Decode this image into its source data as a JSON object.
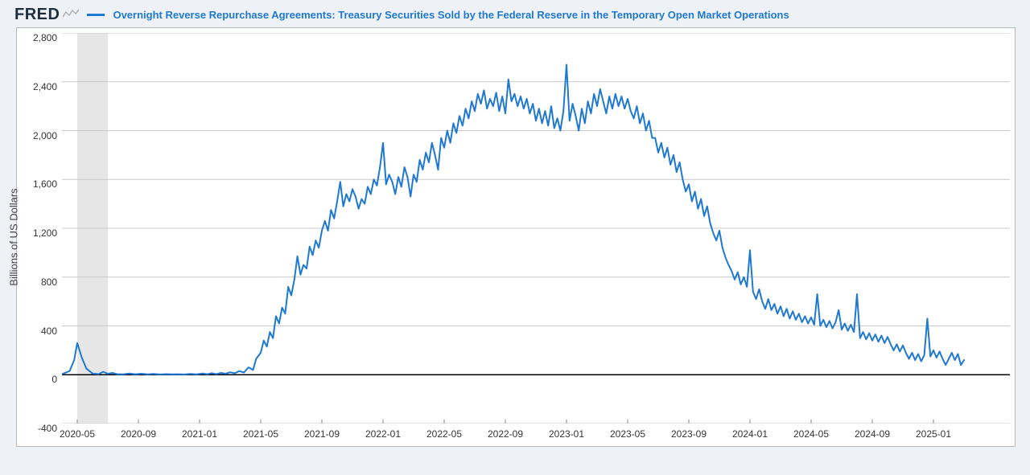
{
  "logo_text": "FRED",
  "series_title": "Overnight Reverse Repurchase Agreements: Treasury Securities Sold by the Federal Reserve in the Temporary Open Market Operations",
  "y_axis_label": "Billions of US Dollars",
  "chart": {
    "type": "line",
    "line_color": "#1f78d1",
    "line_width": 2,
    "background_color": "#ffffff",
    "page_background": "#eef2f7",
    "grid_color": "#c9c9c9",
    "zero_line_color": "#000000",
    "recession_band_color": "#e6e6e6",
    "recession_band": {
      "x_start": 1,
      "x_end": 3
    },
    "ylim": [
      -400,
      2800
    ],
    "ytick_step": 400,
    "yticks": [
      -400,
      0,
      400,
      800,
      1200,
      1600,
      2000,
      2400,
      2800
    ],
    "x_domain": [
      0,
      62
    ],
    "xticks": [
      {
        "pos": 1,
        "label": "2020-05"
      },
      {
        "pos": 5,
        "label": "2020-09"
      },
      {
        "pos": 9,
        "label": "2021-01"
      },
      {
        "pos": 13,
        "label": "2021-05"
      },
      {
        "pos": 17,
        "label": "2021-09"
      },
      {
        "pos": 21,
        "label": "2022-01"
      },
      {
        "pos": 25,
        "label": "2022-05"
      },
      {
        "pos": 29,
        "label": "2022-09"
      },
      {
        "pos": 33,
        "label": "2023-01"
      },
      {
        "pos": 37,
        "label": "2023-05"
      },
      {
        "pos": 41,
        "label": "2023-09"
      },
      {
        "pos": 45,
        "label": "2024-01"
      },
      {
        "pos": 49,
        "label": "2024-05"
      },
      {
        "pos": 53,
        "label": "2024-09"
      },
      {
        "pos": 57,
        "label": "2025-01"
      }
    ],
    "series": [
      {
        "x": 0.0,
        "y": 5
      },
      {
        "x": 0.5,
        "y": 30
      },
      {
        "x": 0.8,
        "y": 120
      },
      {
        "x": 1.0,
        "y": 260
      },
      {
        "x": 1.3,
        "y": 140
      },
      {
        "x": 1.6,
        "y": 50
      },
      {
        "x": 2.0,
        "y": 10
      },
      {
        "x": 2.4,
        "y": 5
      },
      {
        "x": 2.7,
        "y": 25
      },
      {
        "x": 3.0,
        "y": 8
      },
      {
        "x": 3.3,
        "y": 15
      },
      {
        "x": 3.6,
        "y": 5
      },
      {
        "x": 4.0,
        "y": 3
      },
      {
        "x": 4.4,
        "y": 10
      },
      {
        "x": 4.8,
        "y": 4
      },
      {
        "x": 5.2,
        "y": 8
      },
      {
        "x": 5.6,
        "y": 3
      },
      {
        "x": 6.0,
        "y": 6
      },
      {
        "x": 6.4,
        "y": 2
      },
      {
        "x": 6.8,
        "y": 5
      },
      {
        "x": 7.2,
        "y": 3
      },
      {
        "x": 7.6,
        "y": 4
      },
      {
        "x": 8.0,
        "y": 2
      },
      {
        "x": 8.4,
        "y": 6
      },
      {
        "x": 8.8,
        "y": 3
      },
      {
        "x": 9.2,
        "y": 10
      },
      {
        "x": 9.5,
        "y": 4
      },
      {
        "x": 9.8,
        "y": 12
      },
      {
        "x": 10.1,
        "y": 5
      },
      {
        "x": 10.4,
        "y": 15
      },
      {
        "x": 10.7,
        "y": 8
      },
      {
        "x": 11.0,
        "y": 20
      },
      {
        "x": 11.3,
        "y": 12
      },
      {
        "x": 11.6,
        "y": 30
      },
      {
        "x": 11.9,
        "y": 18
      },
      {
        "x": 12.2,
        "y": 60
      },
      {
        "x": 12.5,
        "y": 40
      },
      {
        "x": 12.7,
        "y": 130
      },
      {
        "x": 13.0,
        "y": 180
      },
      {
        "x": 13.2,
        "y": 280
      },
      {
        "x": 13.4,
        "y": 230
      },
      {
        "x": 13.6,
        "y": 350
      },
      {
        "x": 13.8,
        "y": 300
      },
      {
        "x": 14.0,
        "y": 480
      },
      {
        "x": 14.2,
        "y": 420
      },
      {
        "x": 14.4,
        "y": 550
      },
      {
        "x": 14.6,
        "y": 500
      },
      {
        "x": 14.8,
        "y": 720
      },
      {
        "x": 15.0,
        "y": 650
      },
      {
        "x": 15.2,
        "y": 780
      },
      {
        "x": 15.4,
        "y": 970
      },
      {
        "x": 15.6,
        "y": 820
      },
      {
        "x": 15.8,
        "y": 900
      },
      {
        "x": 16.0,
        "y": 870
      },
      {
        "x": 16.2,
        "y": 1050
      },
      {
        "x": 16.4,
        "y": 980
      },
      {
        "x": 16.6,
        "y": 1100
      },
      {
        "x": 16.8,
        "y": 1040
      },
      {
        "x": 17.0,
        "y": 1180
      },
      {
        "x": 17.2,
        "y": 1260
      },
      {
        "x": 17.4,
        "y": 1180
      },
      {
        "x": 17.6,
        "y": 1350
      },
      {
        "x": 17.8,
        "y": 1280
      },
      {
        "x": 18.0,
        "y": 1420
      },
      {
        "x": 18.2,
        "y": 1580
      },
      {
        "x": 18.4,
        "y": 1380
      },
      {
        "x": 18.6,
        "y": 1480
      },
      {
        "x": 18.8,
        "y": 1420
      },
      {
        "x": 19.0,
        "y": 1520
      },
      {
        "x": 19.2,
        "y": 1460
      },
      {
        "x": 19.4,
        "y": 1360
      },
      {
        "x": 19.6,
        "y": 1440
      },
      {
        "x": 19.8,
        "y": 1400
      },
      {
        "x": 20.0,
        "y": 1540
      },
      {
        "x": 20.2,
        "y": 1480
      },
      {
        "x": 20.4,
        "y": 1600
      },
      {
        "x": 20.6,
        "y": 1550
      },
      {
        "x": 20.8,
        "y": 1700
      },
      {
        "x": 21.0,
        "y": 1900
      },
      {
        "x": 21.2,
        "y": 1560
      },
      {
        "x": 21.4,
        "y": 1640
      },
      {
        "x": 21.6,
        "y": 1580
      },
      {
        "x": 21.8,
        "y": 1480
      },
      {
        "x": 22.0,
        "y": 1620
      },
      {
        "x": 22.2,
        "y": 1540
      },
      {
        "x": 22.4,
        "y": 1700
      },
      {
        "x": 22.6,
        "y": 1620
      },
      {
        "x": 22.8,
        "y": 1460
      },
      {
        "x": 23.0,
        "y": 1640
      },
      {
        "x": 23.2,
        "y": 1580
      },
      {
        "x": 23.4,
        "y": 1760
      },
      {
        "x": 23.6,
        "y": 1680
      },
      {
        "x": 23.8,
        "y": 1820
      },
      {
        "x": 24.0,
        "y": 1740
      },
      {
        "x": 24.2,
        "y": 1900
      },
      {
        "x": 24.4,
        "y": 1800
      },
      {
        "x": 24.6,
        "y": 1680
      },
      {
        "x": 24.8,
        "y": 1940
      },
      {
        "x": 25.0,
        "y": 1860
      },
      {
        "x": 25.2,
        "y": 2000
      },
      {
        "x": 25.4,
        "y": 1900
      },
      {
        "x": 25.6,
        "y": 2060
      },
      {
        "x": 25.8,
        "y": 1980
      },
      {
        "x": 26.0,
        "y": 2120
      },
      {
        "x": 26.2,
        "y": 2040
      },
      {
        "x": 26.4,
        "y": 2180
      },
      {
        "x": 26.6,
        "y": 2100
      },
      {
        "x": 26.8,
        "y": 2240
      },
      {
        "x": 27.0,
        "y": 2160
      },
      {
        "x": 27.2,
        "y": 2300
      },
      {
        "x": 27.4,
        "y": 2220
      },
      {
        "x": 27.6,
        "y": 2330
      },
      {
        "x": 27.8,
        "y": 2180
      },
      {
        "x": 28.0,
        "y": 2260
      },
      {
        "x": 28.2,
        "y": 2200
      },
      {
        "x": 28.4,
        "y": 2310
      },
      {
        "x": 28.6,
        "y": 2160
      },
      {
        "x": 28.8,
        "y": 2280
      },
      {
        "x": 29.0,
        "y": 2140
      },
      {
        "x": 29.2,
        "y": 2420
      },
      {
        "x": 29.4,
        "y": 2240
      },
      {
        "x": 29.6,
        "y": 2300
      },
      {
        "x": 29.8,
        "y": 2200
      },
      {
        "x": 30.0,
        "y": 2280
      },
      {
        "x": 30.2,
        "y": 2180
      },
      {
        "x": 30.4,
        "y": 2260
      },
      {
        "x": 30.6,
        "y": 2140
      },
      {
        "x": 30.8,
        "y": 2220
      },
      {
        "x": 31.0,
        "y": 2080
      },
      {
        "x": 31.2,
        "y": 2180
      },
      {
        "x": 31.4,
        "y": 2060
      },
      {
        "x": 31.6,
        "y": 2160
      },
      {
        "x": 31.8,
        "y": 2040
      },
      {
        "x": 32.0,
        "y": 2200
      },
      {
        "x": 32.2,
        "y": 2020
      },
      {
        "x": 32.4,
        "y": 2100
      },
      {
        "x": 32.6,
        "y": 2000
      },
      {
        "x": 32.8,
        "y": 2160
      },
      {
        "x": 33.0,
        "y": 2540
      },
      {
        "x": 33.2,
        "y": 2080
      },
      {
        "x": 33.4,
        "y": 2220
      },
      {
        "x": 33.6,
        "y": 2120
      },
      {
        "x": 33.8,
        "y": 2000
      },
      {
        "x": 34.0,
        "y": 2180
      },
      {
        "x": 34.2,
        "y": 2060
      },
      {
        "x": 34.4,
        "y": 2240
      },
      {
        "x": 34.6,
        "y": 2140
      },
      {
        "x": 34.8,
        "y": 2300
      },
      {
        "x": 35.0,
        "y": 2200
      },
      {
        "x": 35.2,
        "y": 2340
      },
      {
        "x": 35.4,
        "y": 2240
      },
      {
        "x": 35.6,
        "y": 2140
      },
      {
        "x": 35.8,
        "y": 2280
      },
      {
        "x": 36.0,
        "y": 2180
      },
      {
        "x": 36.2,
        "y": 2300
      },
      {
        "x": 36.4,
        "y": 2200
      },
      {
        "x": 36.6,
        "y": 2280
      },
      {
        "x": 36.8,
        "y": 2180
      },
      {
        "x": 37.0,
        "y": 2260
      },
      {
        "x": 37.2,
        "y": 2160
      },
      {
        "x": 37.4,
        "y": 2100
      },
      {
        "x": 37.6,
        "y": 2200
      },
      {
        "x": 37.8,
        "y": 2060
      },
      {
        "x": 38.0,
        "y": 2140
      },
      {
        "x": 38.2,
        "y": 2000
      },
      {
        "x": 38.4,
        "y": 2080
      },
      {
        "x": 38.6,
        "y": 1940
      },
      {
        "x": 38.8,
        "y": 1940
      },
      {
        "x": 39.0,
        "y": 1820
      },
      {
        "x": 39.2,
        "y": 1900
      },
      {
        "x": 39.4,
        "y": 1780
      },
      {
        "x": 39.6,
        "y": 1860
      },
      {
        "x": 39.8,
        "y": 1720
      },
      {
        "x": 40.0,
        "y": 1800
      },
      {
        "x": 40.2,
        "y": 1660
      },
      {
        "x": 40.4,
        "y": 1740
      },
      {
        "x": 40.6,
        "y": 1600
      },
      {
        "x": 40.8,
        "y": 1500
      },
      {
        "x": 41.0,
        "y": 1560
      },
      {
        "x": 41.2,
        "y": 1420
      },
      {
        "x": 41.4,
        "y": 1500
      },
      {
        "x": 41.6,
        "y": 1360
      },
      {
        "x": 41.8,
        "y": 1440
      },
      {
        "x": 42.0,
        "y": 1300
      },
      {
        "x": 42.2,
        "y": 1380
      },
      {
        "x": 42.4,
        "y": 1240
      },
      {
        "x": 42.6,
        "y": 1160
      },
      {
        "x": 42.8,
        "y": 1100
      },
      {
        "x": 43.0,
        "y": 1180
      },
      {
        "x": 43.2,
        "y": 1040
      },
      {
        "x": 43.4,
        "y": 960
      },
      {
        "x": 43.6,
        "y": 900
      },
      {
        "x": 43.8,
        "y": 850
      },
      {
        "x": 44.0,
        "y": 780
      },
      {
        "x": 44.2,
        "y": 840
      },
      {
        "x": 44.4,
        "y": 740
      },
      {
        "x": 44.6,
        "y": 800
      },
      {
        "x": 44.8,
        "y": 720
      },
      {
        "x": 45.0,
        "y": 1020
      },
      {
        "x": 45.2,
        "y": 680
      },
      {
        "x": 45.4,
        "y": 620
      },
      {
        "x": 45.6,
        "y": 700
      },
      {
        "x": 45.8,
        "y": 600
      },
      {
        "x": 46.0,
        "y": 540
      },
      {
        "x": 46.2,
        "y": 620
      },
      {
        "x": 46.4,
        "y": 530
      },
      {
        "x": 46.6,
        "y": 580
      },
      {
        "x": 46.8,
        "y": 500
      },
      {
        "x": 47.0,
        "y": 560
      },
      {
        "x": 47.2,
        "y": 480
      },
      {
        "x": 47.4,
        "y": 540
      },
      {
        "x": 47.6,
        "y": 460
      },
      {
        "x": 47.8,
        "y": 520
      },
      {
        "x": 48.0,
        "y": 450
      },
      {
        "x": 48.2,
        "y": 500
      },
      {
        "x": 48.4,
        "y": 430
      },
      {
        "x": 48.6,
        "y": 480
      },
      {
        "x": 48.8,
        "y": 420
      },
      {
        "x": 49.0,
        "y": 470
      },
      {
        "x": 49.2,
        "y": 410
      },
      {
        "x": 49.4,
        "y": 660
      },
      {
        "x": 49.6,
        "y": 400
      },
      {
        "x": 49.8,
        "y": 450
      },
      {
        "x": 50.0,
        "y": 390
      },
      {
        "x": 50.2,
        "y": 440
      },
      {
        "x": 50.4,
        "y": 380
      },
      {
        "x": 50.6,
        "y": 430
      },
      {
        "x": 50.8,
        "y": 530
      },
      {
        "x": 51.0,
        "y": 370
      },
      {
        "x": 51.2,
        "y": 420
      },
      {
        "x": 51.4,
        "y": 360
      },
      {
        "x": 51.6,
        "y": 410
      },
      {
        "x": 51.8,
        "y": 350
      },
      {
        "x": 52.0,
        "y": 660
      },
      {
        "x": 52.2,
        "y": 300
      },
      {
        "x": 52.4,
        "y": 350
      },
      {
        "x": 52.6,
        "y": 290
      },
      {
        "x": 52.8,
        "y": 340
      },
      {
        "x": 53.0,
        "y": 280
      },
      {
        "x": 53.2,
        "y": 330
      },
      {
        "x": 53.4,
        "y": 270
      },
      {
        "x": 53.6,
        "y": 320
      },
      {
        "x": 53.8,
        "y": 260
      },
      {
        "x": 54.0,
        "y": 310
      },
      {
        "x": 54.2,
        "y": 250
      },
      {
        "x": 54.4,
        "y": 200
      },
      {
        "x": 54.6,
        "y": 250
      },
      {
        "x": 54.8,
        "y": 190
      },
      {
        "x": 55.0,
        "y": 240
      },
      {
        "x": 55.2,
        "y": 180
      },
      {
        "x": 55.4,
        "y": 130
      },
      {
        "x": 55.6,
        "y": 180
      },
      {
        "x": 55.8,
        "y": 120
      },
      {
        "x": 56.0,
        "y": 170
      },
      {
        "x": 56.2,
        "y": 110
      },
      {
        "x": 56.4,
        "y": 160
      },
      {
        "x": 56.6,
        "y": 460
      },
      {
        "x": 56.8,
        "y": 150
      },
      {
        "x": 57.0,
        "y": 200
      },
      {
        "x": 57.2,
        "y": 140
      },
      {
        "x": 57.4,
        "y": 190
      },
      {
        "x": 57.6,
        "y": 130
      },
      {
        "x": 57.8,
        "y": 80
      },
      {
        "x": 58.0,
        "y": 130
      },
      {
        "x": 58.2,
        "y": 180
      },
      {
        "x": 58.4,
        "y": 120
      },
      {
        "x": 58.6,
        "y": 170
      },
      {
        "x": 58.8,
        "y": 80
      },
      {
        "x": 59.0,
        "y": 120
      }
    ]
  }
}
